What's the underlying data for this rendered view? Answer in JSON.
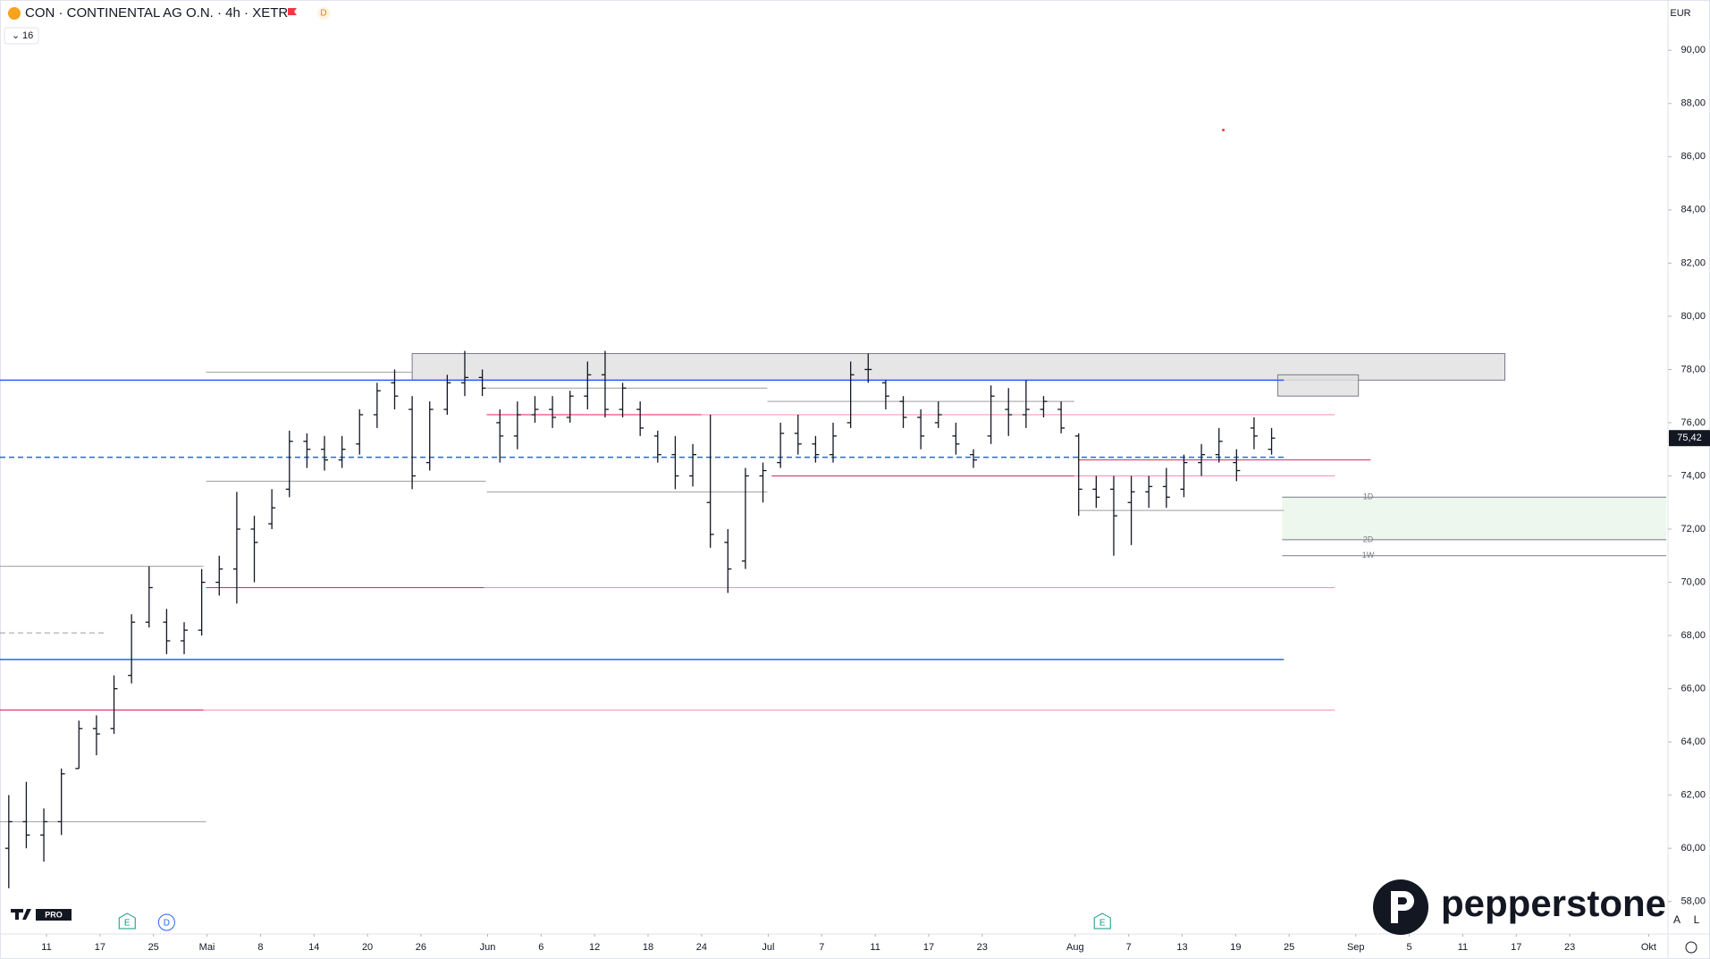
{
  "chart_data": {
    "type": "ohlc",
    "title": "CON · CONTINENTAL AG O.N. · 4h · XETR",
    "interval_badge": "D",
    "indicator_count": "16",
    "currency": "EUR",
    "brand": "pepperstone",
    "platform_badge": "PRO",
    "scale_buttons": [
      "A",
      "L"
    ],
    "color": "#131722",
    "xlim": [
      0,
      190.2
    ],
    "ylim": [
      56.78,
      91.89
    ],
    "yticks": [
      {
        "value": 58,
        "label": "58,00"
      },
      {
        "value": 60,
        "label": "60,00"
      },
      {
        "value": 62,
        "label": "62,00"
      },
      {
        "value": 64,
        "label": "64,00"
      },
      {
        "value": 66,
        "label": "66,00"
      },
      {
        "value": 68,
        "label": "68,00"
      },
      {
        "value": 70,
        "label": "70,00"
      },
      {
        "value": 72,
        "label": "72,00"
      },
      {
        "value": 74,
        "label": "74,00"
      },
      {
        "value": 76,
        "label": "76,00"
      },
      {
        "value": 78,
        "label": "78,00"
      },
      {
        "value": 80,
        "label": "80,00"
      },
      {
        "value": 82,
        "label": "82,00"
      },
      {
        "value": 84,
        "label": "84,00"
      },
      {
        "value": 86,
        "label": "86,00"
      },
      {
        "value": 88,
        "label": "88,00"
      },
      {
        "value": 90,
        "label": "90,00"
      }
    ],
    "xticks": [
      {
        "value": 5.3,
        "label": "11"
      },
      {
        "value": 11.4,
        "label": "17"
      },
      {
        "value": 17.5,
        "label": "25"
      },
      {
        "value": 23.6,
        "label": "Mai"
      },
      {
        "value": 29.7,
        "label": "8"
      },
      {
        "value": 35.8,
        "label": "14"
      },
      {
        "value": 41.9,
        "label": "20"
      },
      {
        "value": 48,
        "label": "26"
      },
      {
        "value": 55.6,
        "label": "Jun"
      },
      {
        "value": 61.7,
        "label": "6"
      },
      {
        "value": 67.8,
        "label": "12"
      },
      {
        "value": 73.9,
        "label": "18"
      },
      {
        "value": 80,
        "label": "24"
      },
      {
        "value": 87.6,
        "label": "Jul"
      },
      {
        "value": 93.7,
        "label": "7"
      },
      {
        "value": 99.8,
        "label": "11"
      },
      {
        "value": 105.9,
        "label": "17"
      },
      {
        "value": 112,
        "label": "23"
      },
      {
        "value": 122.6,
        "label": "Aug"
      },
      {
        "value": 128.7,
        "label": "7"
      },
      {
        "value": 134.8,
        "label": "13"
      },
      {
        "value": 140.9,
        "label": "19"
      },
      {
        "value": 147,
        "label": "25"
      },
      {
        "value": 154.6,
        "label": "Sep"
      },
      {
        "value": 160.7,
        "label": "5"
      },
      {
        "value": 166.8,
        "label": "11"
      },
      {
        "value": 172.9,
        "label": "17"
      },
      {
        "value": 179,
        "label": "23"
      },
      {
        "value": 188,
        "label": "Okt"
      }
    ],
    "x": [
      1,
      3,
      5,
      7,
      9,
      11,
      13,
      15,
      17,
      19,
      21,
      23,
      25,
      27,
      29,
      31,
      33,
      35,
      37,
      39,
      41,
      43,
      45,
      47,
      49,
      51,
      53,
      55,
      57,
      59,
      61,
      63,
      65,
      67,
      69,
      71,
      73,
      75,
      77,
      79,
      81,
      83,
      85,
      87,
      89,
      91,
      93,
      95,
      97,
      99,
      101,
      103,
      105,
      107,
      109,
      111,
      113,
      115,
      117,
      119,
      121,
      123,
      125,
      127,
      129,
      131,
      133,
      135,
      137,
      139,
      141,
      143,
      145
    ],
    "open": [
      60,
      61,
      60.5,
      61,
      63,
      64.5,
      64.5,
      66.5,
      68.5,
      68.5,
      67.8,
      68.2,
      70,
      70.5,
      72,
      72.2,
      73.5,
      75.3,
      75,
      74.6,
      75.2,
      76.3,
      77.5,
      76.5,
      74.5,
      76.5,
      77.5,
      77.7,
      76,
      75.5,
      76.3,
      76.5,
      76.2,
      77,
      77.8,
      76.5,
      76.5,
      75.5,
      74.8,
      74,
      73,
      71.5,
      70.8,
      74,
      74.5,
      75.6,
      75.2,
      74.8,
      76,
      78,
      77.5,
      76.8,
      76.2,
      76,
      75.5,
      74.8,
      75.5,
      76.5,
      76.3,
      76.5,
      76.5,
      75.5,
      73.5,
      73.5,
      73,
      73.4,
      73.6,
      73.5,
      74.5,
      74.8,
      74.5,
      75.8,
      75
    ],
    "high": [
      62,
      62.5,
      61.5,
      63,
      64.8,
      65,
      66.5,
      68.8,
      70.6,
      69,
      68.5,
      70.5,
      71,
      73.4,
      72.5,
      73.5,
      75.7,
      75.6,
      75.5,
      75.5,
      76.5,
      77.5,
      78,
      77,
      76.8,
      77.8,
      78.7,
      78,
      76.5,
      76.8,
      77,
      77,
      77.2,
      78.3,
      78.7,
      77.5,
      76.8,
      75.7,
      75.5,
      75.2,
      76.3,
      72,
      74.3,
      74.5,
      76,
      76.3,
      75.5,
      76,
      78.3,
      78.6,
      77.6,
      77,
      76.5,
      76.8,
      76,
      75,
      77.4,
      77.3,
      77.6,
      77,
      76.8,
      75.6,
      74,
      74,
      74,
      74,
      74.3,
      74.8,
      75.2,
      75.8,
      75,
      76.2,
      75.8
    ],
    "low": [
      58.5,
      60,
      59.5,
      60.5,
      63,
      63.5,
      64.3,
      66.2,
      68.3,
      67.3,
      67.3,
      68,
      69.5,
      69.2,
      70,
      72,
      73.2,
      74.3,
      74.2,
      74.3,
      74.8,
      75.8,
      76.5,
      73.5,
      74.2,
      76.3,
      77,
      77,
      74.5,
      75,
      76,
      75.8,
      76,
      76.5,
      76.2,
      76.2,
      75.5,
      74.5,
      73.5,
      73.6,
      71.3,
      69.6,
      70.5,
      73,
      74.3,
      74.8,
      74.5,
      74.5,
      75.8,
      77.5,
      76.5,
      75.8,
      75,
      75.8,
      74.8,
      74.3,
      75.2,
      75.5,
      75.8,
      76.2,
      75.6,
      72.5,
      72.8,
      71,
      71.4,
      72.8,
      72.8,
      73.2,
      74,
      74.5,
      73.8,
      75,
      74.8
    ],
    "close": [
      61,
      60.5,
      61,
      62.8,
      64.5,
      64.3,
      66,
      68.5,
      69.8,
      67.8,
      68.2,
      70,
      70.5,
      72,
      71.5,
      72.8,
      75.3,
      75,
      74.6,
      75,
      76.3,
      77.2,
      77,
      74,
      76.5,
      77.5,
      77.7,
      77.3,
      75.5,
      76.3,
      76.5,
      76.2,
      77,
      77.8,
      76.5,
      77.3,
      75.8,
      74.8,
      74,
      74.8,
      71.8,
      70.5,
      74,
      74.2,
      75.6,
      75.2,
      74.8,
      75.5,
      77.8,
      78,
      77,
      76.2,
      75.5,
      76.3,
      75.2,
      74.6,
      77,
      76.3,
      76.5,
      76.8,
      75.8,
      73.5,
      73.2,
      72.5,
      73.4,
      73.6,
      73.2,
      74.5,
      74.8,
      75.3,
      74.2,
      75.5,
      75.42
    ],
    "last": {
      "value": 75.42,
      "label": "75,42"
    },
    "levels": [
      {
        "value": 77.6,
        "color": "#2962ff",
        "from": 0,
        "to": 146.4
      },
      {
        "value": 67.1,
        "color": "#2962ff",
        "from": 0,
        "to": 146.4
      },
      {
        "value": 74.7,
        "color": "#2962ff",
        "dashed": true,
        "from": 0,
        "to": 146.4
      },
      {
        "value": 74.6,
        "color": "#e91e63",
        "from": 123,
        "to": 156.3
      },
      {
        "value": 65.2,
        "color": "#f48fb1",
        "from": 0,
        "to": 152.2
      },
      {
        "value": 65.2,
        "color": "#e91e63",
        "from": 0,
        "to": 23.2
      },
      {
        "value": 69.8,
        "color": "#f48fb1",
        "from": 23.5,
        "to": 152.2
      },
      {
        "value": 69.8,
        "color": "#e91e63",
        "from": 23.5,
        "to": 55.2
      },
      {
        "value": 76.3,
        "color": "#e91e63",
        "from": 55.5,
        "to": 80
      },
      {
        "value": 76.3,
        "color": "#f48fb1",
        "from": 80,
        "to": 152.2
      },
      {
        "value": 74,
        "color": "#e91e63",
        "from": 88,
        "to": 122.5
      },
      {
        "value": 74,
        "color": "#f48fb1",
        "from": 122.5,
        "to": 152.2
      },
      {
        "value": 77.9,
        "color": "#9e9e9e",
        "from": 23.5,
        "to": 47
      },
      {
        "value": 77.3,
        "color": "#9e9e9e",
        "from": 55.5,
        "to": 87.5
      },
      {
        "value": 73.8,
        "color": "#9e9e9e",
        "from": 23.5,
        "to": 55.4
      },
      {
        "value": 73.4,
        "color": "#9e9e9e",
        "from": 55.5,
        "to": 87.5
      },
      {
        "value": 76.8,
        "color": "#9e9e9e",
        "from": 87.5,
        "to": 122.5
      },
      {
        "value": 72.7,
        "color": "#9e9e9e",
        "from": 123,
        "to": 146.4
      },
      {
        "value": 70.6,
        "color": "#9e9e9e",
        "from": 0,
        "to": 23.2
      },
      {
        "value": 68.1,
        "color": "#9e9e9e",
        "dashed": true,
        "from": 0,
        "to": 12
      },
      {
        "value": 61,
        "color": "#9e9e9e",
        "from": 0,
        "to": 23.5
      }
    ],
    "zones": [
      {
        "low": 77.6,
        "high": 78.6,
        "from": 47,
        "to": 171.6,
        "color": "#e0e0e0"
      },
      {
        "low": 77,
        "high": 77.8,
        "from": 145.7,
        "to": 154.9,
        "color": "#e0e0e0"
      },
      {
        "low": 71.6,
        "high": 73.2,
        "from": 146.2,
        "to": 190,
        "color": "#e8f5e9"
      }
    ],
    "marked_levels": [
      {
        "value": 73.2,
        "label": "1D"
      },
      {
        "value": 71.6,
        "label": "2D"
      },
      {
        "value": 71.0,
        "label": "1W"
      }
    ],
    "marker": {
      "x": 139.5,
      "y": 87
    },
    "events": [
      {
        "x": 14.5,
        "label": "E"
      },
      {
        "x": 19,
        "label": "D"
      },
      {
        "x": 125.7,
        "label": "E"
      }
    ]
  }
}
